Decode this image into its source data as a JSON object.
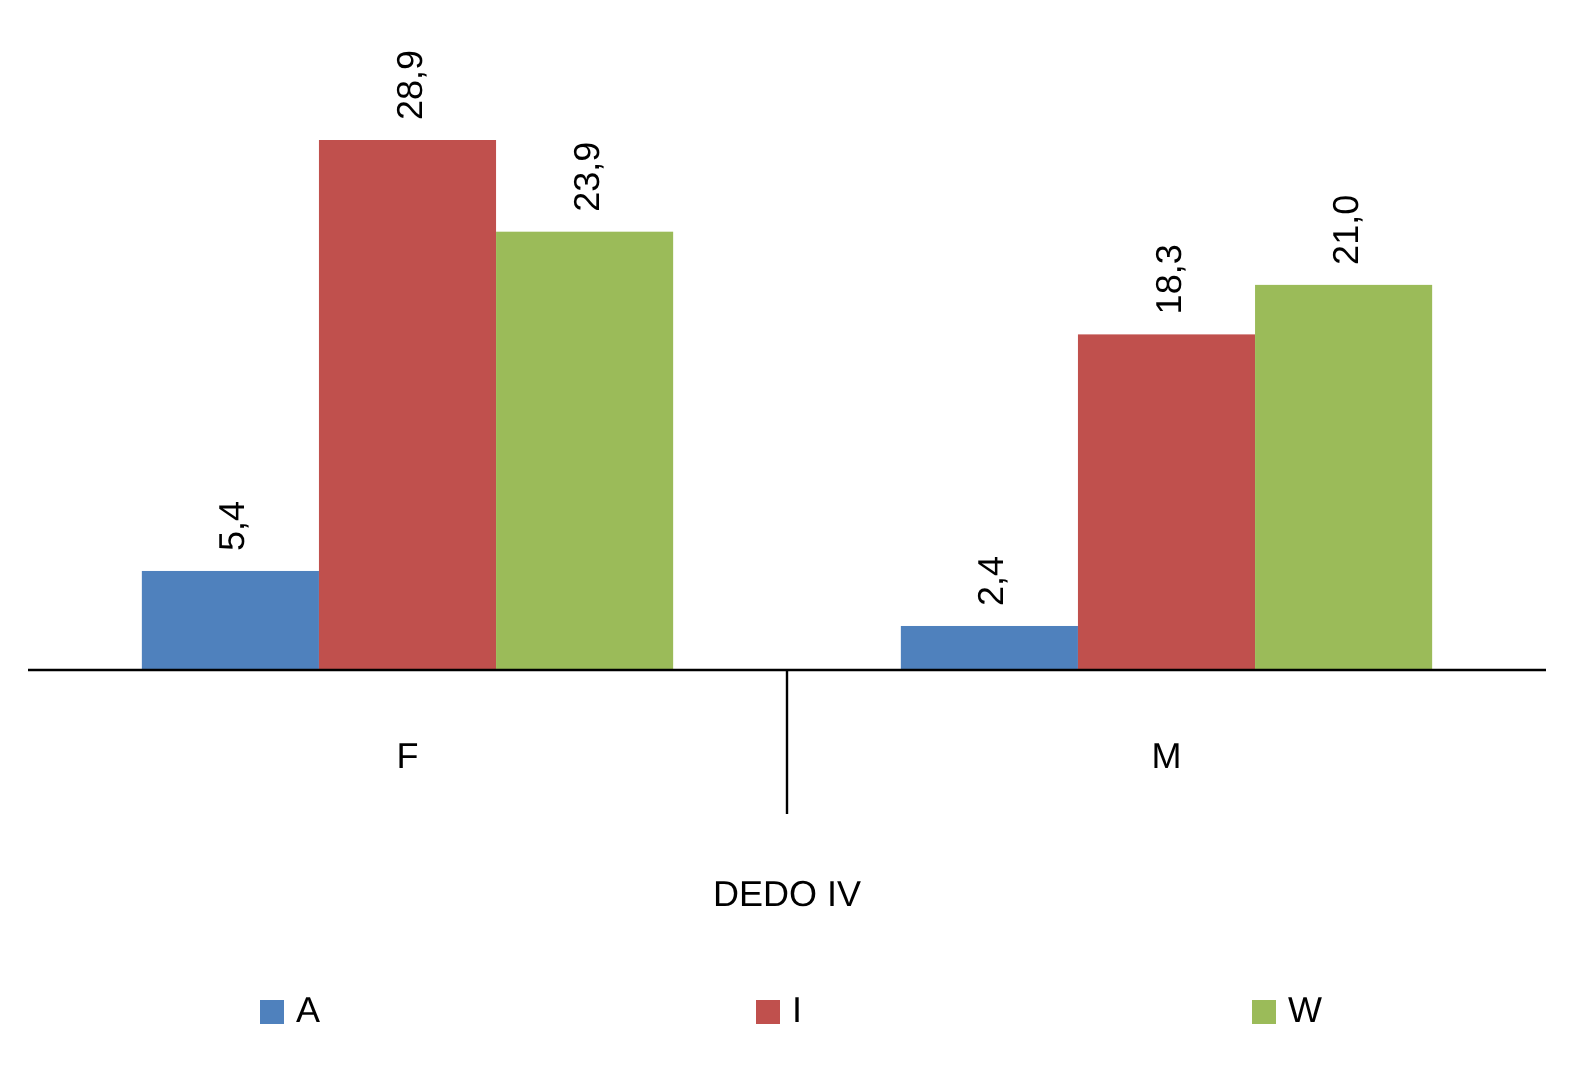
{
  "chart_data": {
    "type": "bar",
    "xlabel": "DEDO IV",
    "categories": [
      "F",
      "M"
    ],
    "series": [
      {
        "name": "A",
        "color": "#4f81bd",
        "values": [
          5.4,
          2.4
        ],
        "value_labels": [
          "5,4",
          "2,4"
        ]
      },
      {
        "name": "I",
        "color": "#c0504d",
        "values": [
          28.9,
          18.3
        ],
        "value_labels": [
          "28,9",
          "18,3"
        ]
      },
      {
        "name": "W",
        "color": "#9bbb59",
        "values": [
          23.9,
          21.0
        ],
        "value_labels": [
          "23,9",
          "21,0"
        ]
      }
    ],
    "legend": "bottom"
  }
}
